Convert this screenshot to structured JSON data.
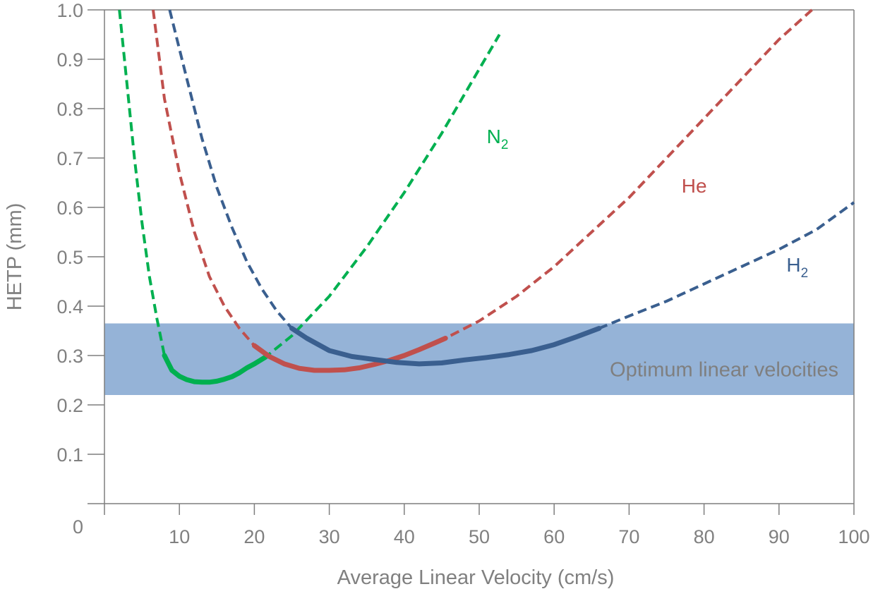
{
  "chart_data": {
    "type": "line",
    "title": "",
    "xlabel": "Average Linear Velocity (cm/s)",
    "ylabel": "HETP (mm)",
    "xlim": [
      0,
      100
    ],
    "ylim": [
      0,
      1.0
    ],
    "x_ticks": [
      10,
      20,
      30,
      40,
      50,
      60,
      70,
      80,
      90,
      100
    ],
    "x_tick_labels": [
      "10",
      "20",
      "30",
      "40",
      "50",
      "60",
      "70",
      "80",
      "90",
      "100"
    ],
    "y_ticks": [
      0.1,
      0.2,
      0.3,
      0.4,
      0.5,
      0.6,
      0.7,
      0.8,
      0.9,
      1.0
    ],
    "y_tick_labels": [
      "0.1",
      "0.2",
      "0.3",
      "0.4",
      "0.5",
      "0.6",
      "0.7",
      "0.8",
      "0.9",
      "1.0"
    ],
    "origin_label": "0",
    "grid": false,
    "band": {
      "label": "Optimum linear velocities",
      "y_range": [
        0.22,
        0.365
      ],
      "color": "#95b3d7"
    },
    "series": [
      {
        "name": "N",
        "name_sub": "2",
        "color": "#00b050",
        "solid_range": [
          7.8,
          21.5
        ],
        "points": [
          [
            2.0,
            1.0
          ],
          [
            3.0,
            0.85
          ],
          [
            4.0,
            0.7
          ],
          [
            5.0,
            0.57
          ],
          [
            6.0,
            0.46
          ],
          [
            7.0,
            0.375
          ],
          [
            8.0,
            0.3
          ],
          [
            9.0,
            0.27
          ],
          [
            10.0,
            0.258
          ],
          [
            11.0,
            0.251
          ],
          [
            12.0,
            0.247
          ],
          [
            13.0,
            0.246
          ],
          [
            14.0,
            0.246
          ],
          [
            15.0,
            0.248
          ],
          [
            16.0,
            0.252
          ],
          [
            17.0,
            0.257
          ],
          [
            18.0,
            0.265
          ],
          [
            19.0,
            0.275
          ],
          [
            20.0,
            0.283
          ],
          [
            21.5,
            0.297
          ],
          [
            25.0,
            0.34
          ],
          [
            30.0,
            0.42
          ],
          [
            35.0,
            0.52
          ],
          [
            40.0,
            0.63
          ],
          [
            45.0,
            0.75
          ],
          [
            50.0,
            0.88
          ],
          [
            52.7,
            0.95
          ]
        ]
      },
      {
        "name": "He",
        "name_sub": "",
        "color": "#c0504d",
        "solid_range": [
          18.5,
          45.5
        ],
        "points": [
          [
            6.5,
            1.0
          ],
          [
            8.0,
            0.82
          ],
          [
            10.0,
            0.67
          ],
          [
            12.0,
            0.55
          ],
          [
            14.0,
            0.46
          ],
          [
            16.0,
            0.4
          ],
          [
            18.0,
            0.355
          ],
          [
            20.0,
            0.32
          ],
          [
            22.0,
            0.298
          ],
          [
            24.0,
            0.283
          ],
          [
            26.0,
            0.274
          ],
          [
            28.0,
            0.27
          ],
          [
            30.0,
            0.27
          ],
          [
            32.0,
            0.271
          ],
          [
            34.0,
            0.275
          ],
          [
            36.0,
            0.282
          ],
          [
            38.0,
            0.29
          ],
          [
            40.0,
            0.3
          ],
          [
            42.0,
            0.312
          ],
          [
            44.0,
            0.325
          ],
          [
            45.5,
            0.335
          ],
          [
            50.0,
            0.37
          ],
          [
            55.0,
            0.42
          ],
          [
            60.0,
            0.48
          ],
          [
            65.0,
            0.55
          ],
          [
            70.0,
            0.62
          ],
          [
            75.0,
            0.7
          ],
          [
            80.0,
            0.78
          ],
          [
            85.0,
            0.86
          ],
          [
            90.0,
            0.94
          ],
          [
            94.4,
            1.0
          ]
        ]
      },
      {
        "name": "H",
        "name_sub": "2",
        "color": "#3a5f8f",
        "solid_range": [
          25.0,
          66.0
        ],
        "points": [
          [
            8.7,
            1.0
          ],
          [
            11.0,
            0.86
          ],
          [
            13.0,
            0.74
          ],
          [
            15.0,
            0.64
          ],
          [
            17.0,
            0.56
          ],
          [
            19.0,
            0.49
          ],
          [
            21.0,
            0.435
          ],
          [
            23.0,
            0.39
          ],
          [
            25.0,
            0.355
          ],
          [
            27.0,
            0.335
          ],
          [
            30.0,
            0.31
          ],
          [
            33.0,
            0.298
          ],
          [
            36.0,
            0.292
          ],
          [
            39.0,
            0.286
          ],
          [
            42.0,
            0.283
          ],
          [
            45.0,
            0.285
          ],
          [
            48.0,
            0.291
          ],
          [
            51.0,
            0.296
          ],
          [
            54.0,
            0.302
          ],
          [
            57.0,
            0.31
          ],
          [
            60.0,
            0.322
          ],
          [
            63.0,
            0.338
          ],
          [
            66.0,
            0.355
          ],
          [
            70.0,
            0.38
          ],
          [
            75.0,
            0.41
          ],
          [
            80.0,
            0.445
          ],
          [
            85.0,
            0.48
          ],
          [
            90.0,
            0.515
          ],
          [
            95.0,
            0.555
          ],
          [
            100.0,
            0.61
          ]
        ]
      }
    ],
    "annotations": [
      {
        "series": "N",
        "text": "N",
        "sub": "2",
        "x": 51,
        "y": 0.73,
        "color": "#00b050"
      },
      {
        "series": "He",
        "text": "He",
        "sub": "",
        "x": 77,
        "y": 0.63,
        "color": "#c0504d"
      },
      {
        "series": "H",
        "text": "H",
        "sub": "2",
        "x": 91,
        "y": 0.47,
        "color": "#3a5f8f"
      }
    ]
  }
}
